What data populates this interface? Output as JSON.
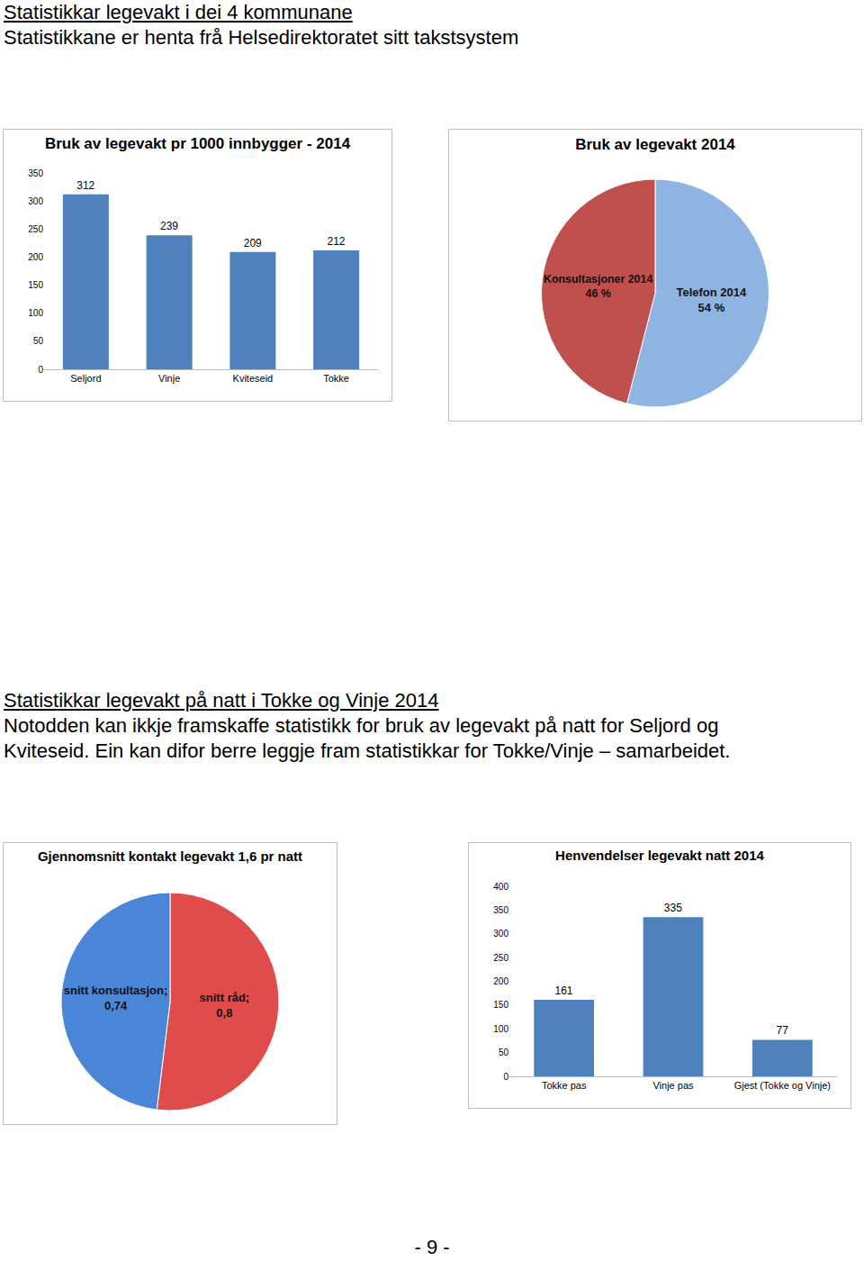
{
  "header": {
    "title": "Statistikkar legevakt i dei 4 kommunane",
    "subtitle": "Statistikkane er henta frå Helsedirektoratet sitt takstsystem"
  },
  "section": {
    "title": "Statistikkar legevakt på natt i Tokke og Vinje 2014",
    "text": [
      "Notodden kan ikkje framskaffe statistikk for bruk av legevakt på natt for Seljord og",
      "Kviteseid. Ein kan difor berre leggje fram statistikkar for Tokke/Vinje – samarbeidet."
    ]
  },
  "chart_data": [
    {
      "type": "bar",
      "title": "Bruk av legevakt pr 1000 innbygger - 2014",
      "categories": [
        "Seljord",
        "Vinje",
        "Kviteseid",
        "Tokke"
      ],
      "values": [
        312,
        239,
        209,
        212
      ],
      "color": "#4f81bd",
      "ylim": [
        0,
        350
      ],
      "yticks": [
        0,
        50,
        100,
        150,
        200,
        250,
        300,
        350
      ],
      "grid": false,
      "data_labels": true
    },
    {
      "type": "pie",
      "title": "Bruk av legevakt 2014",
      "categories": [
        "Telefon 2014",
        "Konsultasjoner 2014"
      ],
      "values": [
        54,
        46
      ],
      "value_labels": [
        "54 %",
        "46 %"
      ],
      "colors": [
        "#8eb4e3",
        "#c0504d"
      ],
      "data_labels": true
    },
    {
      "type": "pie",
      "title": "Gjennomsnitt kontakt legevakt 1,6 pr natt",
      "categories": [
        "snitt råd;",
        "snitt konsultasjon;"
      ],
      "values": [
        0.8,
        0.74
      ],
      "value_labels": [
        "0,8",
        "0,74"
      ],
      "colors": [
        "#e04b4b",
        "#4a86d8"
      ],
      "data_labels": true
    },
    {
      "type": "bar",
      "title": "Henvendelser legevakt natt 2014",
      "categories": [
        "Tokke pas",
        "Vinje pas",
        "Gjest (Tokke og Vinje)"
      ],
      "values": [
        161,
        335,
        77
      ],
      "color": "#4f81bd",
      "ylim": [
        0,
        400
      ],
      "yticks": [
        0,
        50,
        100,
        150,
        200,
        250,
        300,
        350,
        400
      ],
      "grid": false,
      "data_labels": true
    }
  ],
  "page_number": "- 9 -"
}
